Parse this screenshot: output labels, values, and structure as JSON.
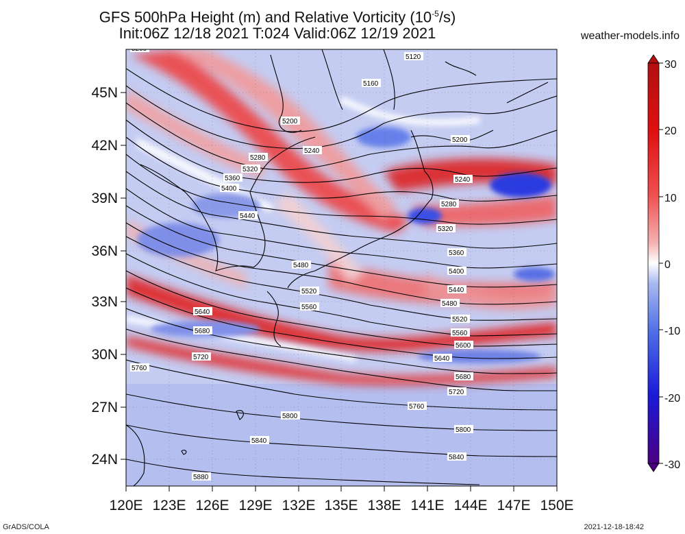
{
  "header": {
    "title_line1": "GFS 500hPa Height (m) and Relative Vorticity (10",
    "title_exp": "-5",
    "title_line1_end": "/s)",
    "title_line2": "Init:06Z 12/18 2021 T:024 Valid:06Z 12/19 2021",
    "site": "weather-models.info"
  },
  "axes": {
    "lat_labels": [
      "45N",
      "42N",
      "39N",
      "36N",
      "33N",
      "30N",
      "27N",
      "24N"
    ],
    "lon_labels": [
      "120E",
      "123E",
      "126E",
      "129E",
      "132E",
      "135E",
      "138E",
      "141E",
      "144E",
      "147E",
      "150E"
    ]
  },
  "colorbar": {
    "ticks": [
      "30",
      "20",
      "10",
      "0",
      "-10",
      "-20",
      "-30"
    ],
    "colors": [
      "#4b0082",
      "#1a1ad8",
      "#4f6fe6",
      "#a8b9f0",
      "#ffffff",
      "#f5b3b3",
      "#ef5050",
      "#e01010",
      "#b01010"
    ]
  },
  "contours": [
    "5120",
    "5160",
    "5200",
    "5240",
    "5280",
    "5320",
    "5360",
    "5400",
    "5440",
    "5480",
    "5520",
    "5560",
    "5600",
    "5640",
    "5680",
    "5720",
    "5760",
    "5800",
    "5840",
    "5880"
  ],
  "contour_labels": [
    {
      "text": "5200",
      "key": "a"
    },
    {
      "text": "5120",
      "key": "b"
    },
    {
      "text": "5160",
      "key": "c"
    },
    {
      "text": "5200",
      "key": "d"
    },
    {
      "text": "5280",
      "key": "e"
    },
    {
      "text": "5240",
      "key": "f"
    },
    {
      "text": "5320",
      "key": "g"
    },
    {
      "text": "5360",
      "key": "h"
    },
    {
      "text": "5400",
      "key": "i"
    },
    {
      "text": "5200",
      "key": "j"
    },
    {
      "text": "5240",
      "key": "k"
    },
    {
      "text": "5280",
      "key": "l"
    },
    {
      "text": "5440",
      "key": "m"
    },
    {
      "text": "5320",
      "key": "n"
    },
    {
      "text": "5360",
      "key": "o"
    },
    {
      "text": "5480",
      "key": "p"
    },
    {
      "text": "5400",
      "key": "q"
    },
    {
      "text": "5520",
      "key": "r"
    },
    {
      "text": "5440",
      "key": "s"
    },
    {
      "text": "5560",
      "key": "t"
    },
    {
      "text": "5480",
      "key": "u"
    },
    {
      "text": "5640",
      "key": "v"
    },
    {
      "text": "5520",
      "key": "w"
    },
    {
      "text": "5680",
      "key": "x"
    },
    {
      "text": "5560",
      "key": "y"
    },
    {
      "text": "5600",
      "key": "z"
    },
    {
      "text": "5720",
      "key": "aa"
    },
    {
      "text": "5640",
      "key": "ab"
    },
    {
      "text": "5760",
      "key": "ac"
    },
    {
      "text": "5680",
      "key": "ad"
    },
    {
      "text": "5720",
      "key": "ae"
    },
    {
      "text": "5760",
      "key": "af"
    },
    {
      "text": "5800",
      "key": "ag"
    },
    {
      "text": "5800",
      "key": "ah"
    },
    {
      "text": "5840",
      "key": "ai"
    },
    {
      "text": "5840",
      "key": "aj"
    },
    {
      "text": "5880",
      "key": "ak"
    }
  ],
  "footer": {
    "left": "GrADS/COLA",
    "right": "2021-12-18-18:42"
  }
}
